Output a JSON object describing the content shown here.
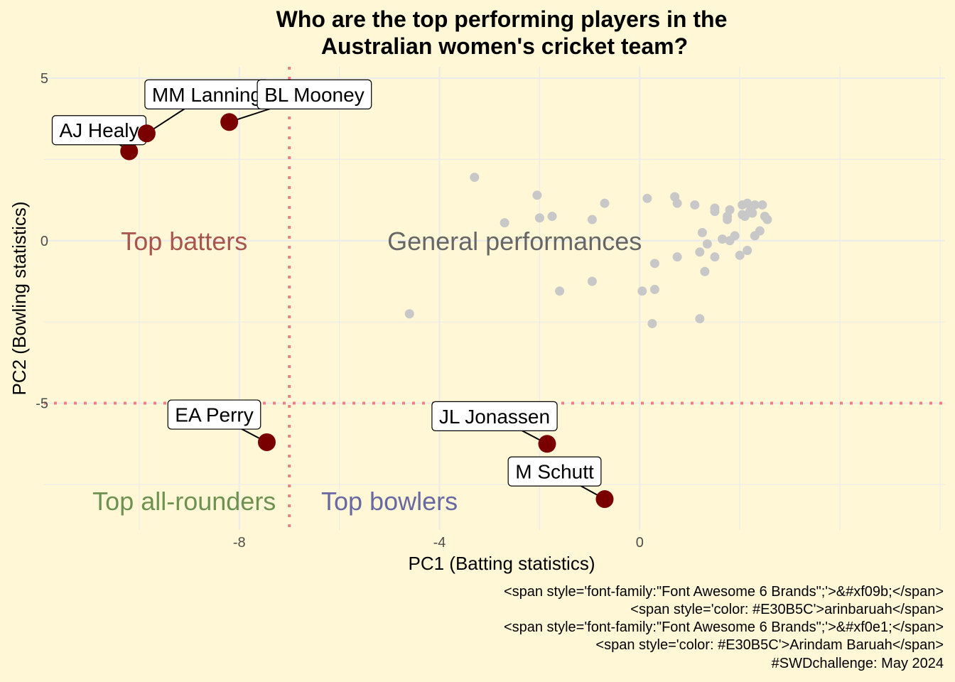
{
  "chart_data": {
    "type": "scatter",
    "title": [
      "Who are the top performing players in the",
      "Australian women's cricket team?"
    ],
    "xlabel": "PC1 (Batting statistics)",
    "ylabel": "PC2 (Bowling statistics)",
    "xlim": [
      -11.9,
      6.1
    ],
    "ylim": [
      -8.9,
      5.35
    ],
    "x_ticks": [
      {
        "value": -8,
        "label": "-8"
      },
      {
        "value": -4,
        "label": "-4"
      },
      {
        "value": 0,
        "label": "0"
      }
    ],
    "y_ticks": [
      {
        "value": 5,
        "label": "5"
      },
      {
        "value": 0,
        "label": "0"
      },
      {
        "value": -5,
        "label": "-5"
      }
    ],
    "grid": true,
    "reference_lines": {
      "x": -7,
      "y": -5,
      "color": "#F08080"
    },
    "quadrant_labels": [
      {
        "text": "Top batters",
        "x": -9.1,
        "y": 0,
        "color": "#A8544F"
      },
      {
        "text": "General performances",
        "x": -2.5,
        "y": 0,
        "color": "#666666"
      },
      {
        "text": "Top all-rounders",
        "x": -9.1,
        "y": -8,
        "color": "#6E9152"
      },
      {
        "text": "Top bowlers",
        "x": -5,
        "y": -8,
        "color": "#6868A2"
      }
    ],
    "highlighted_players": [
      {
        "name": "AJ Healy",
        "x": -10.2,
        "y": 2.75,
        "label_x": -10.8,
        "label_y": 3.4
      },
      {
        "name": "MM Lanning",
        "x": -9.85,
        "y": 3.3,
        "label_x": -8.65,
        "label_y": 4.5
      },
      {
        "name": "BL Mooney",
        "x": -8.2,
        "y": 3.65,
        "label_x": -6.5,
        "label_y": 4.5
      },
      {
        "name": "EA Perry",
        "x": -7.45,
        "y": -6.2,
        "label_x": -8.5,
        "label_y": -5.35
      },
      {
        "name": "JL Jonassen",
        "x": -1.85,
        "y": -6.25,
        "label_x": -2.9,
        "label_y": -5.4
      },
      {
        "name": "M Schutt",
        "x": -0.7,
        "y": -7.95,
        "label_x": -1.7,
        "label_y": -7.1
      }
    ],
    "highlight_color": "#7A0000",
    "other_points_color": "#C8C8C8",
    "other_points": [
      [
        -3.3,
        1.95
      ],
      [
        -4.6,
        -2.25
      ],
      [
        -2.7,
        0.55
      ],
      [
        -2.05,
        1.4
      ],
      [
        -2.0,
        0.7
      ],
      [
        -1.75,
        0.75
      ],
      [
        -1.6,
        -1.55
      ],
      [
        -0.95,
        0.65
      ],
      [
        -0.95,
        -1.25
      ],
      [
        -0.7,
        1.15
      ],
      [
        0.05,
        -1.55
      ],
      [
        0.15,
        1.3
      ],
      [
        0.25,
        -2.55
      ],
      [
        0.3,
        -1.5
      ],
      [
        0.3,
        -0.7
      ],
      [
        0.7,
        1.35
      ],
      [
        0.75,
        1.15
      ],
      [
        0.75,
        -0.5
      ],
      [
        1.1,
        1.1
      ],
      [
        1.2,
        -2.4
      ],
      [
        1.2,
        -0.35
      ],
      [
        1.25,
        0.25
      ],
      [
        1.3,
        -0.95
      ],
      [
        1.35,
        -0.1
      ],
      [
        1.5,
        1.0
      ],
      [
        1.5,
        0.9
      ],
      [
        1.5,
        -0.5
      ],
      [
        1.65,
        0.05
      ],
      [
        1.75,
        0.65
      ],
      [
        1.75,
        0.75
      ],
      [
        1.8,
        0.95
      ],
      [
        1.8,
        0.0
      ],
      [
        1.9,
        0.15
      ],
      [
        2.0,
        -0.45
      ],
      [
        2.05,
        1.1
      ],
      [
        2.05,
        0.8
      ],
      [
        2.1,
        0.75
      ],
      [
        2.15,
        -0.3
      ],
      [
        2.15,
        1.15
      ],
      [
        2.2,
        0.9
      ],
      [
        2.25,
        0.85
      ],
      [
        2.3,
        1.1
      ],
      [
        2.3,
        0.15
      ],
      [
        2.4,
        0.3
      ],
      [
        2.45,
        1.1
      ],
      [
        2.5,
        0.75
      ],
      [
        2.55,
        0.65
      ]
    ]
  },
  "caption": [
    "<span style='font-family:\"Font Awesome 6 Brands\";'>&#xf09b;</span>",
    "<span style='color: #E30B5C'>arinbaruah</span>",
    "<span style='font-family:\"Font Awesome 6 Brands\";'>&#xf0e1;</span>",
    "<span style='color: #E30B5C'>Arindam Baruah</span>",
    "#SWDchallenge: May 2024"
  ]
}
